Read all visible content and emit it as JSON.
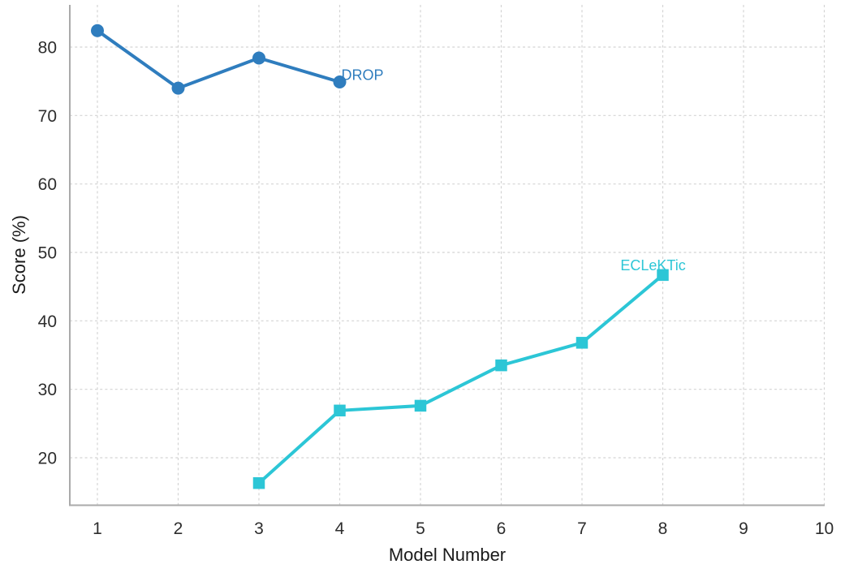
{
  "figure": {
    "background": "#ffffff",
    "grid_color": "#d4d4d4",
    "spine_color": "#aaaaaa",
    "tick_label_color": "#2d2d2d",
    "axis_label_color": "#1a1a1a"
  },
  "chart_data": {
    "type": "line",
    "title": "",
    "xlabel": "Model Number",
    "ylabel": "Score (%)",
    "x_ticks": [
      1,
      2,
      3,
      4,
      5,
      6,
      7,
      8,
      9,
      10
    ],
    "y_ticks": [
      20,
      30,
      40,
      50,
      60,
      70,
      80
    ],
    "xlim": [
      0.65,
      10.0
    ],
    "ylim": [
      13.0,
      86.2
    ],
    "grid": true,
    "grid_style": "dashed",
    "legend_position": "inline-annotations",
    "series": [
      {
        "name": "DROP",
        "color": "#2f7dbe",
        "marker": "circle",
        "x": [
          1,
          2,
          3,
          4
        ],
        "y": [
          82.4,
          74.0,
          78.4,
          74.9
        ],
        "label": {
          "x": 4.02,
          "y": 75.2,
          "anchor": "start"
        }
      },
      {
        "name": "ECLeKTic",
        "color": "#2cc6d6",
        "marker": "square",
        "x": [
          3,
          4,
          5,
          6,
          7,
          8
        ],
        "y": [
          16.3,
          26.9,
          27.6,
          33.5,
          36.8,
          46.7
        ],
        "label": {
          "x": 7.88,
          "y": 47.4,
          "anchor": "middle"
        }
      }
    ]
  }
}
